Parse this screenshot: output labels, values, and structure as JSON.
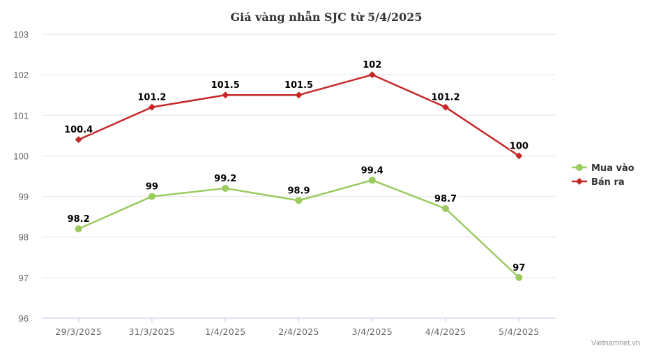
{
  "chart_data": {
    "type": "line",
    "title": "Giá vàng nhẫn SJC từ 5/4/2025",
    "categories": [
      "29/3/2025",
      "31/3/2025",
      "1/4/2025",
      "2/4/2025",
      "3/4/2025",
      "4/4/2025",
      "5/4/2025"
    ],
    "series": [
      {
        "name": "Mua vào",
        "color": "#9bcb5f",
        "marker": "circle",
        "values": [
          98.2,
          99,
          99.2,
          98.9,
          99.4,
          98.7,
          97
        ],
        "labels": [
          "98.2",
          "99",
          "99.2",
          "98.9",
          "99.4",
          "98.7",
          "97"
        ]
      },
      {
        "name": "Bán ra",
        "color": "#c62828",
        "marker": "diamond",
        "values": [
          100.4,
          101.2,
          101.5,
          101.5,
          102,
          101.2,
          100
        ],
        "labels": [
          "100.4",
          "101.2",
          "101.5",
          "101.5",
          "102",
          "101.2",
          "100"
        ]
      }
    ],
    "ylim": [
      96,
      103
    ],
    "yticks": [
      "96",
      "97",
      "98",
      "99",
      "100",
      "101",
      "102",
      "103"
    ],
    "xlabel": "",
    "ylabel": "",
    "grid": true,
    "legend": "right"
  },
  "credit": "Vietnamnet.vn"
}
